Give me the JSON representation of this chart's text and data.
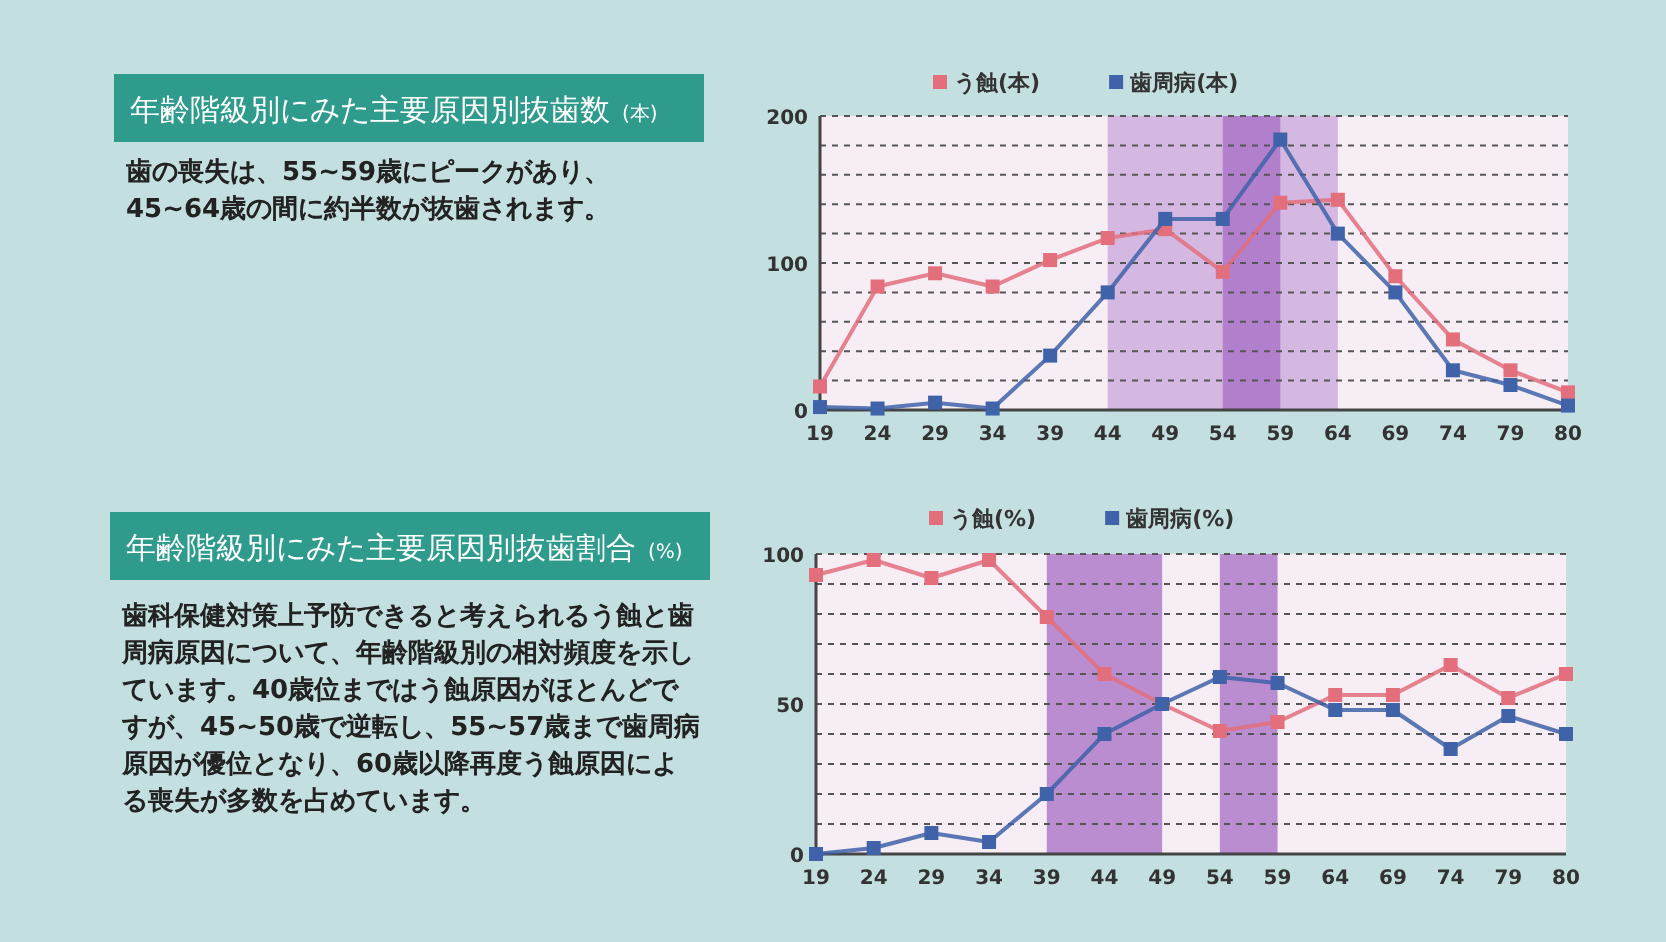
{
  "chart_data": [
    {
      "type": "line",
      "title": "年齢階級別にみた主要原因別抜歯数",
      "subtitle": "(本)",
      "annotations": [
        "歯の喪失は、55~59歳にピークがあり、45~64歳の間に約半数が抜歯されます。"
      ],
      "categories": [
        "19",
        "24",
        "29",
        "34",
        "39",
        "44",
        "49",
        "54",
        "59",
        "64",
        "69",
        "74",
        "79",
        "80"
      ],
      "series": [
        {
          "name": "う蝕(本)",
          "color": "#e36f7c",
          "values": [
            16,
            84,
            93,
            84,
            102,
            117,
            123,
            94,
            141,
            143,
            91,
            48,
            27,
            12
          ]
        },
        {
          "name": "歯周病(本)",
          "color": "#3f62a8",
          "values": [
            2,
            1,
            5,
            1,
            37,
            80,
            130,
            130,
            184,
            120,
            80,
            27,
            17,
            3
          ]
        }
      ],
      "ylim": [
        0,
        200
      ],
      "yticks": [
        0,
        {
          "value": 20,
          "label": null
        },
        {
          "value": 40,
          "label": null
        },
        {
          "value": 60,
          "label": null
        },
        {
          "value": 80,
          "label": null
        },
        100,
        {
          "value": 120,
          "label": null
        },
        {
          "value": 140,
          "label": null
        },
        {
          "value": 160,
          "label": null
        },
        {
          "value": 180,
          "label": null
        },
        200
      ],
      "bands": [
        {
          "axis": "x",
          "from": "44",
          "to": "64",
          "color": "#c9a6dc"
        },
        {
          "axis": "x",
          "from": "54",
          "to": "59",
          "color": "#a46cc4"
        }
      ],
      "grid": "y",
      "legend": "top",
      "marker": "square",
      "line_style": "solid"
    },
    {
      "type": "line",
      "title": "年齢階級別にみた主要原因別抜歯割合",
      "subtitle": "(%)",
      "annotations": [
        "歯科保健対策上予防できると考えられるう蝕と歯周病原因について、年齢階級別の相対頻度を示しています。40歳位まではう蝕原因がほとんどですが、45~50歳で逆転し、55~57歳まで歯周病原因が優位となり、60歳以降再度う蝕原因による喪失が多数を占めています。"
      ],
      "categories": [
        "19",
        "24",
        "29",
        "34",
        "39",
        "44",
        "49",
        "54",
        "59",
        "64",
        "69",
        "74",
        "79",
        "80"
      ],
      "series": [
        {
          "name": "う蝕(%)",
          "color": "#e36f7c",
          "values": [
            93,
            98,
            92,
            98,
            79,
            60,
            50,
            41,
            44,
            53,
            53,
            63,
            52,
            60
          ]
        },
        {
          "name": "歯周病(%)",
          "color": "#3f62a8",
          "values": [
            0,
            2,
            7,
            4,
            20,
            40,
            50,
            59,
            57,
            48,
            48,
            35,
            46,
            40
          ]
        }
      ],
      "ylim": [
        0,
        100
      ],
      "yticks": [
        0,
        {
          "value": 10,
          "label": null
        },
        {
          "value": 20,
          "label": null
        },
        {
          "value": 30,
          "label": null
        },
        {
          "value": 40,
          "label": null
        },
        50,
        {
          "value": 60,
          "label": null
        },
        {
          "value": 70,
          "label": null
        },
        {
          "value": 80,
          "label": null
        },
        {
          "value": 90,
          "label": null
        },
        100
      ],
      "bands": [
        {
          "axis": "x",
          "from": "39",
          "to": "49",
          "color": "#a46cc4"
        },
        {
          "axis": "x",
          "from": "54",
          "to": "59",
          "color": "#a46cc4"
        }
      ],
      "grid": "y",
      "legend": "top",
      "marker": "square",
      "line_style": "solid"
    }
  ]
}
